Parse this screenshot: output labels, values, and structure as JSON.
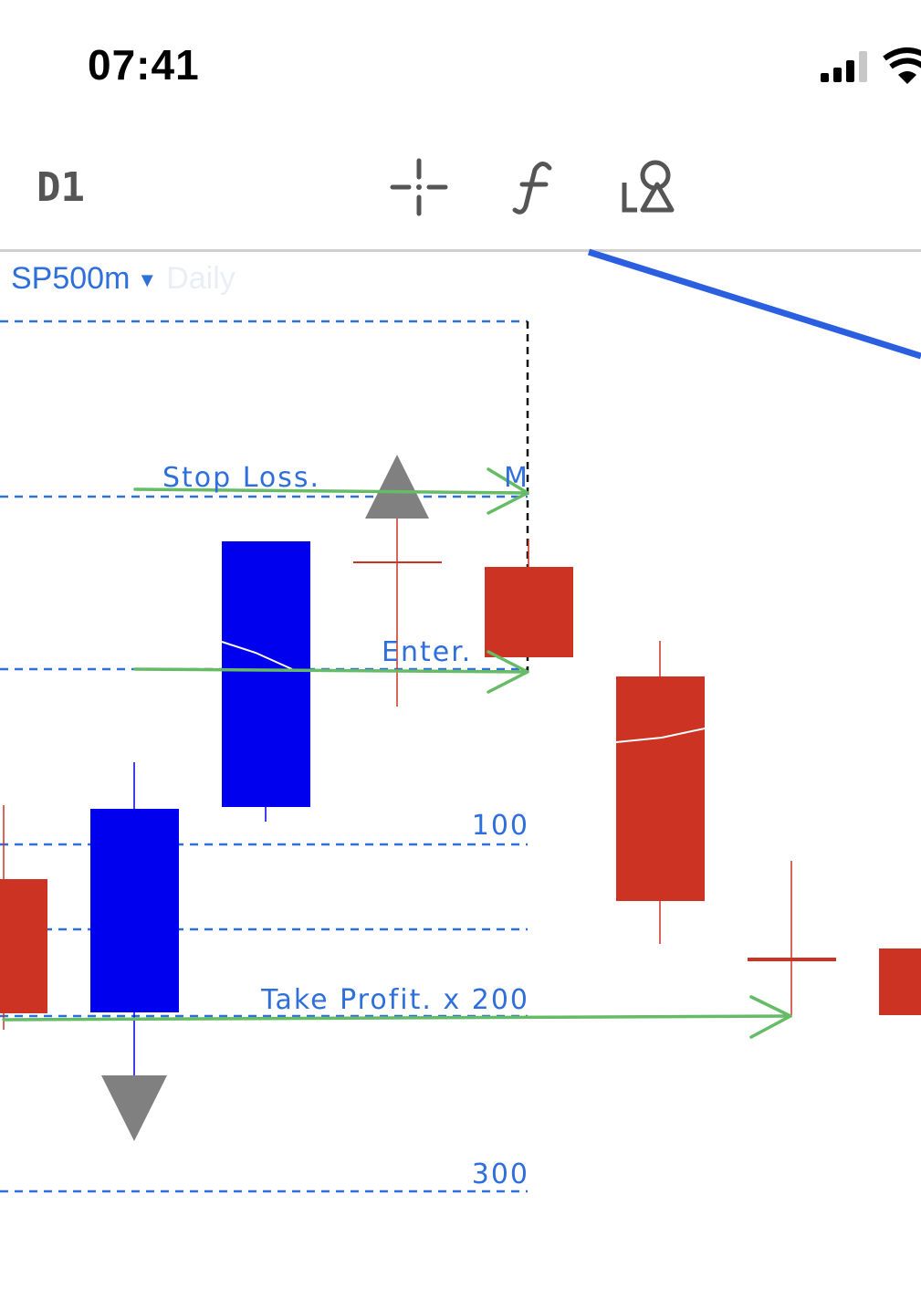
{
  "status_bar": {
    "time": "07:41"
  },
  "toolbar": {
    "timeframe": "D1",
    "icons": [
      "crosshair-icon",
      "function-icon",
      "shapes-icon"
    ]
  },
  "chart": {
    "symbol": "SP500m",
    "period": "Daily",
    "level_labels": {
      "stop_loss": "Stop Loss.",
      "marker": "M",
      "enter": "Enter.",
      "level_100": "100",
      "take_profit": "Take Profit. x 200",
      "level_300": "300"
    },
    "colors": {
      "bull": "#0000ee",
      "bear": "#cc3322",
      "arrow": "#66bb66",
      "level_line": "#2f6fdc",
      "trend_line": "#2a5fe0",
      "signal": "#808080"
    }
  }
}
